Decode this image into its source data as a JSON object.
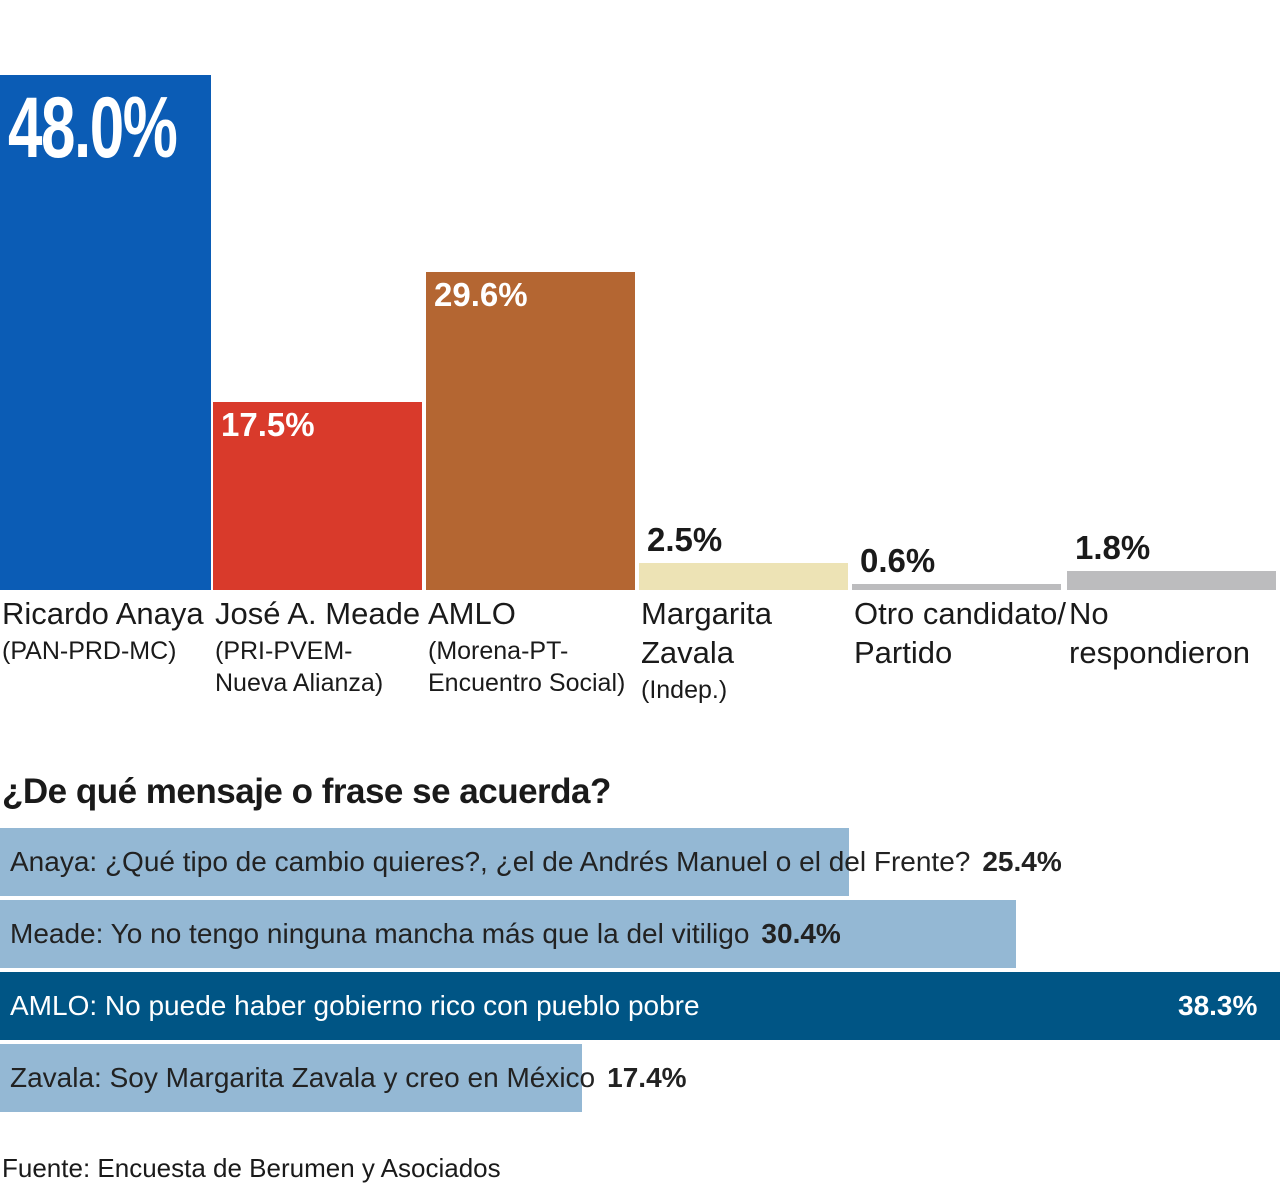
{
  "chart_data": [
    {
      "type": "bar",
      "categories": [
        "Ricardo Anaya",
        "José A. Meade",
        "AMLO",
        "Margarita Zavala",
        "Otro candidato/ Partido",
        "No respondieron"
      ],
      "sublabels": [
        "(PAN-PRD-MC)",
        "(PRI-PVEM-Nueva Alianza)",
        "(Morena-PT-Encuentro Social)",
        "(Indep.)",
        null,
        null
      ],
      "values": [
        48.0,
        17.5,
        29.6,
        2.5,
        0.6,
        1.8
      ],
      "value_labels": [
        "48.0%",
        "17.5%",
        "29.6%",
        "2.5%",
        "0.6%",
        "1.8%"
      ],
      "colors": [
        "#0b5cb5",
        "#d93a2b",
        "#b46632",
        "#ede3b5",
        "#bcbcbe",
        "#bcbcbe"
      ]
    },
    {
      "type": "hbar",
      "title": "¿De qué mensaje o frase se acuerda?",
      "categories": [
        "Anaya: ¿Qué tipo de cambio quieres?, ¿el de Andrés Manuel o el del Frente?",
        "Meade: Yo no tengo ninguna mancha más que la del vitiligo",
        "AMLO: No puede haber gobierno rico con pueblo pobre",
        "Zavala: Soy Margarita Zavala y creo en México"
      ],
      "values": [
        25.4,
        30.4,
        38.3,
        17.4
      ],
      "value_labels": [
        "25.4%",
        "30.4%",
        "38.3%",
        "17.4%"
      ],
      "colors": [
        "#94b8d4",
        "#94b8d4",
        "#005585",
        "#94b8d4"
      ],
      "source": "Fuente: Encuesta de Berumen y Asociados"
    }
  ]
}
